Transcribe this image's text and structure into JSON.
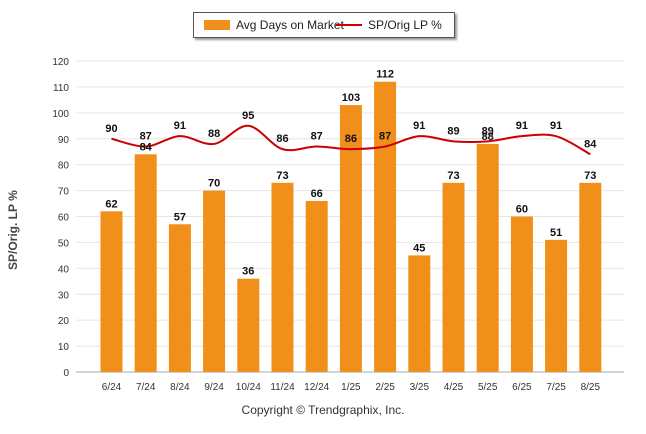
{
  "chart_data": {
    "type": "bar",
    "categories": [
      "6/24",
      "7/24",
      "8/24",
      "9/24",
      "10/24",
      "11/24",
      "12/24",
      "1/25",
      "2/25",
      "3/25",
      "4/25",
      "5/25",
      "6/25",
      "7/25",
      "8/25"
    ],
    "series": [
      {
        "name": "Avg Days on Market",
        "kind": "bar",
        "color": "#F0901A",
        "values": [
          62,
          84,
          57,
          70,
          36,
          73,
          66,
          103,
          112,
          45,
          73,
          88,
          60,
          51,
          73
        ]
      },
      {
        "name": "SP/Orig LP %",
        "kind": "line",
        "color": "#CC0000",
        "values": [
          90,
          87,
          91,
          88,
          95,
          86,
          87,
          86,
          87,
          91,
          89,
          89,
          91,
          91,
          84
        ]
      }
    ],
    "ylabel": "SP/Orig. LP %",
    "ylim": [
      0,
      120
    ],
    "yticks": [
      0,
      10,
      20,
      30,
      40,
      50,
      60,
      70,
      80,
      90,
      100,
      110,
      120
    ],
    "grid": true,
    "legend_position": "top-center"
  },
  "legend": {
    "bar_label": "Avg Days on Market",
    "line_label": "SP/Orig LP %"
  },
  "footer": {
    "copyright": "Copyright © Trendgraphix, Inc."
  }
}
